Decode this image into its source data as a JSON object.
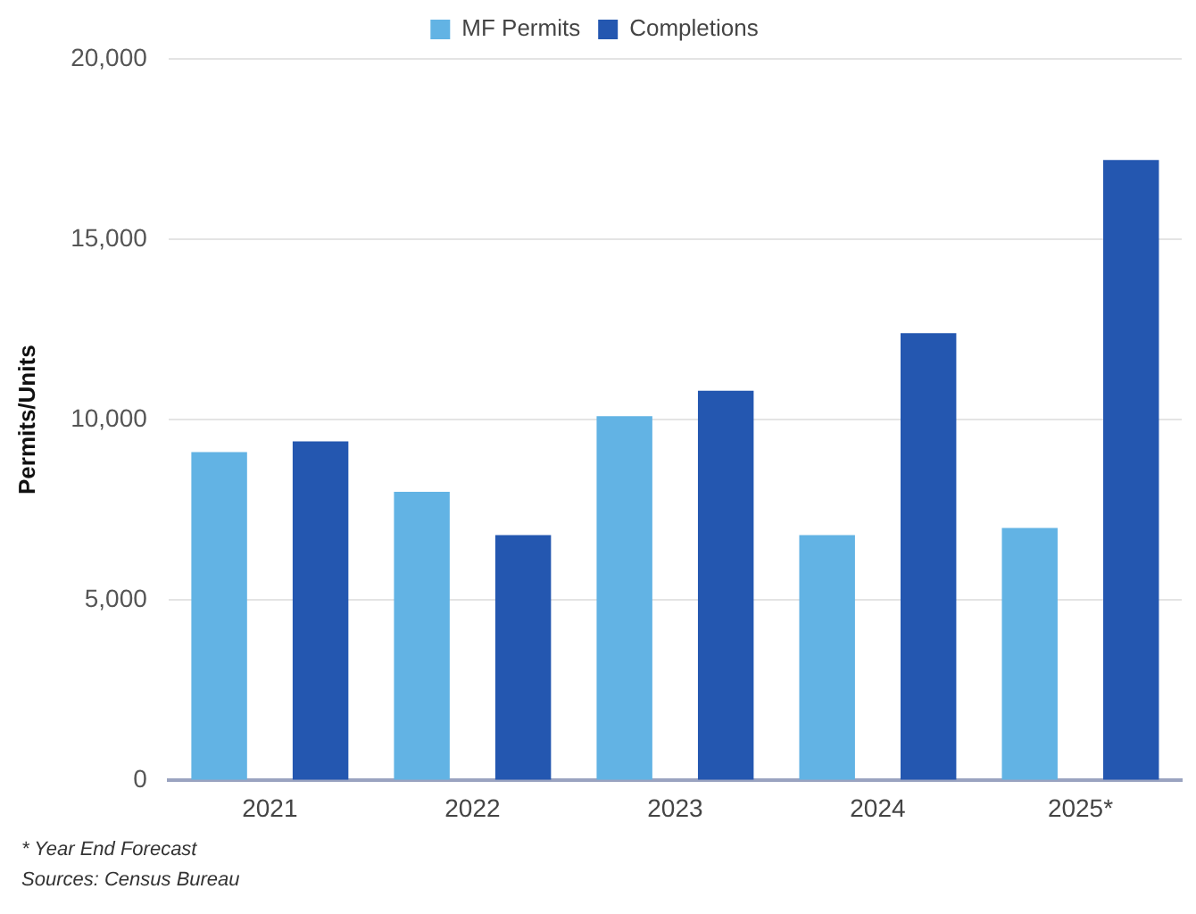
{
  "chart_data": {
    "type": "bar",
    "ylabel": "Permits/Units",
    "categories": [
      "2021",
      "2022",
      "2023",
      "2024",
      "2025*"
    ],
    "series": [
      {
        "name": "MF Permits",
        "color": "#62b3e4",
        "values": [
          9100,
          8000,
          10100,
          6800,
          7000
        ]
      },
      {
        "name": "Completions",
        "color": "#2457b0",
        "values": [
          9400,
          6800,
          10800,
          12400,
          17200
        ]
      }
    ],
    "ylim": [
      0,
      20000
    ],
    "yticks": [
      {
        "value": 0,
        "label": "0"
      },
      {
        "value": 5000,
        "label": "5,000"
      },
      {
        "value": 10000,
        "label": "10,000"
      },
      {
        "value": 15000,
        "label": "15,000"
      },
      {
        "value": 20000,
        "label": "20,000"
      }
    ],
    "grid": "y",
    "legend": "top",
    "annotations": [
      "* Year End Forecast",
      "Sources: Census Bureau"
    ]
  }
}
